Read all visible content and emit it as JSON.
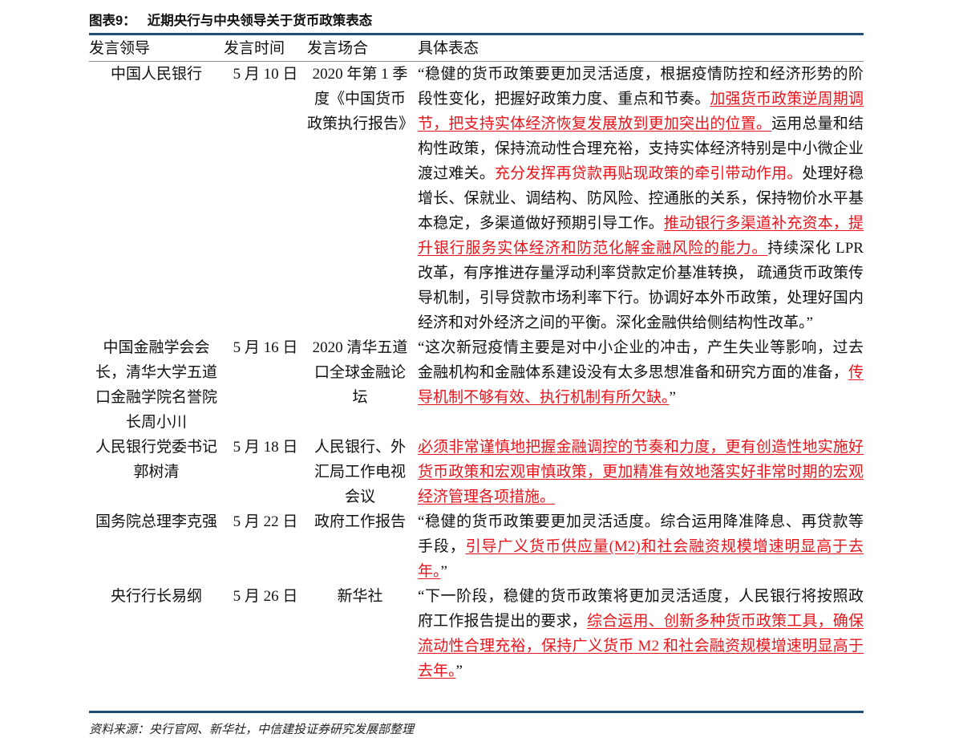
{
  "title": {
    "number": "图表9：",
    "text": "近期央行与中央领导关于货币政策表态"
  },
  "columns": [
    "发言领导",
    "发言时间",
    "发言场合",
    "具体表态"
  ],
  "style_colors": {
    "highlight": "#e8141b",
    "rule": "#1f4e79"
  },
  "rows": [
    {
      "speaker": "中国人民银行",
      "date": "5 月 10 日",
      "occasion": "2020 年第 1 季度《中国货币政策执行报告》",
      "statement": [
        {
          "t": "“稳健的货币政策要更加灵活适度，根据疫情防控和经济形势的阶段性变化，把握好政策力度、重点和节奏。",
          "s": "n"
        },
        {
          "t": "加强货币政策逆周期调节，把支持实体经济恢复发展放到更加突出的位置。",
          "s": "ru"
        },
        {
          "t": "运用总量和结构性政策，保持流动性合理充裕，支持实体经济特别是中小微企业渡过难关。",
          "s": "n"
        },
        {
          "t": "充分发挥再贷款再贴现政策的牵引带动作用。",
          "s": "r"
        },
        {
          "t": "处理好稳增长、保就业、调结构、防风险、控通胀的关系，保持物价水平基本稳定，多渠道做好预期引导工作。",
          "s": "n"
        },
        {
          "t": "推动银行多渠道补充资本，提升银行服务实体经济和防范化解金融风险的能力。",
          "s": "ru"
        },
        {
          "t": "持续深化 LPR 改革，有序推进存量浮动利率贷款定价基准转换， 疏通货币政策传导机制，引导贷款市场利率下行。协调好本外币政策，处理好国内经济和对外经济之间的平衡。深化金融供给侧结构性改革。”",
          "s": "n"
        }
      ]
    },
    {
      "speaker": "中国金融学会会长，清华大学五道口金融学院名誉院长周小川",
      "date": "5 月 16 日",
      "occasion": "2020 清华五道口全球金融论坛",
      "statement": [
        {
          "t": "“这次新冠疫情主要是对中小企业的冲击，产生失业等影响，过去金融机构和金融体系建设没有太多思想准备和研究方面的准备，",
          "s": "n"
        },
        {
          "t": "传导机制不够有效、执行机制有所欠缺。",
          "s": "ru"
        },
        {
          "t": "”",
          "s": "n"
        }
      ]
    },
    {
      "speaker": "人民银行党委书记郭树清",
      "date": "5 月 18 日",
      "occasion": "人民银行、外汇局工作电视会议",
      "statement": [
        {
          "t": "必须非常谨慎地把握金融调控的节奏和力度，更有创造性地实施好货币政策和宏观审慎政策，更加精准有效地落实好非常时期的宏观经济管理各项措施。",
          "s": "ru"
        }
      ]
    },
    {
      "speaker": "国务院总理李克强",
      "date": "5 月 22 日",
      "occasion": "政府工作报告",
      "statement": [
        {
          "t": "“稳健的货币政策要更加灵活适度。综合运用降准降息、再贷款等手段，",
          "s": "n"
        },
        {
          "t": "引导广义货币供应量(M2)和社会融资规模增速明显高于去年。",
          "s": "ru"
        },
        {
          "t": "”",
          "s": "n"
        }
      ]
    },
    {
      "speaker": "央行行长易纲",
      "date": "5 月 26 日",
      "occasion": "新华社",
      "statement": [
        {
          "t": "“下一阶段，稳健的货币政策将更加灵活适度，人民银行将按照政府工作报告提出的要求，",
          "s": "n"
        },
        {
          "t": "综合运用、创新多种货币政策工具，确保流动性合理充裕，保持广义货币 M2 和社会融资规模增速明显高于去年。",
          "s": "ru"
        },
        {
          "t": "”",
          "s": "n"
        }
      ]
    }
  ],
  "source": "资料来源：央行官网、新华社，中信建投证券研究发展部整理"
}
